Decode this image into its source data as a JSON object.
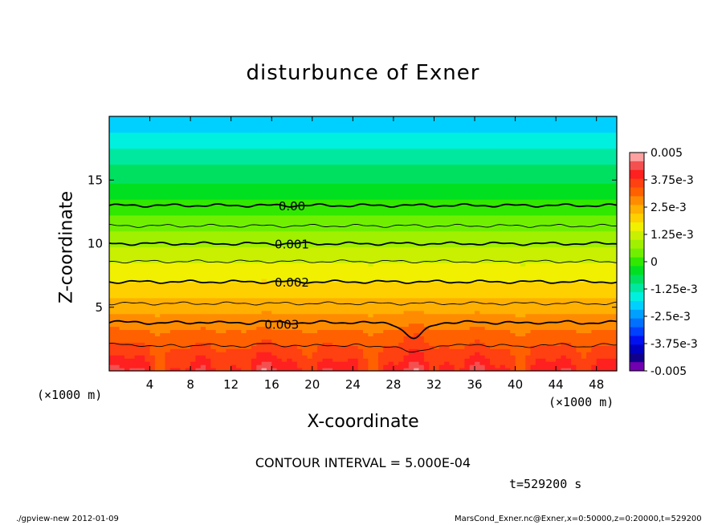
{
  "chart_data": {
    "type": "heatmap",
    "title": "disturbunce of Exner",
    "xlabel": "X-coordinate",
    "ylabel": "Z-coordinate",
    "x_unit_label": "(×1000 m)",
    "y_unit_label": "(×1000 m)",
    "xlim": [
      0,
      50
    ],
    "ylim": [
      0,
      20
    ],
    "x_ticks": [
      4,
      8,
      12,
      16,
      20,
      24,
      28,
      32,
      36,
      40,
      44,
      48
    ],
    "y_ticks": [
      5,
      10,
      15
    ],
    "colorbar": {
      "min": -0.005,
      "max": 0.005,
      "tick_labels": [
        "0.005",
        "3.75e-3",
        "2.5e-3",
        "1.25e-3",
        "0",
        "-1.25e-3",
        "-2.5e-3",
        "-3.75e-3",
        "-0.005"
      ],
      "colors": [
        "#fca0a0",
        "#f45050",
        "#ff2020",
        "#ff4010",
        "#ff6000",
        "#ff8c00",
        "#ffb000",
        "#ffd000",
        "#f0f000",
        "#c8f000",
        "#a0f000",
        "#70f000",
        "#30e800",
        "#00e020",
        "#00e060",
        "#00e8a0",
        "#00f0e0",
        "#00d0ff",
        "#00a0ff",
        "#0070ff",
        "#0040ff",
        "#0010f0",
        "#0000c0",
        "#10008c",
        "#7000b0"
      ]
    },
    "contour_interval_text": "CONTOUR INTERVAL = 5.000E-04",
    "contour_labels": [
      {
        "label": "0.00",
        "value": 0.0,
        "x": 18,
        "z": 13
      },
      {
        "label": "0.001",
        "value": 0.001,
        "x": 18,
        "z": 10
      },
      {
        "label": "0.002",
        "value": 0.002,
        "x": 18,
        "z": 7
      },
      {
        "label": "0.003",
        "value": 0.003,
        "x": 17,
        "z": 3.7
      }
    ],
    "contours": [
      {
        "value": 0.0,
        "z": 13.0,
        "bold": true
      },
      {
        "value": 0.0005,
        "z": 11.4,
        "bold": false
      },
      {
        "value": 0.001,
        "z": 10.0,
        "bold": true
      },
      {
        "value": 0.0015,
        "z": 8.6,
        "bold": false
      },
      {
        "value": 0.002,
        "z": 7.0,
        "bold": true
      },
      {
        "value": 0.0025,
        "z": 5.3,
        "bold": false
      },
      {
        "value": 0.003,
        "z": 3.8,
        "bold": true
      },
      {
        "value": 0.0035,
        "z": 2.0,
        "bold": false
      }
    ]
  },
  "time_label": "t=529200 s",
  "footer_left": "./gpview-new  2012-01-09",
  "footer_right": "MarsCond_Exner.nc@Exner,x=0:50000,z=0:20000,t=529200"
}
